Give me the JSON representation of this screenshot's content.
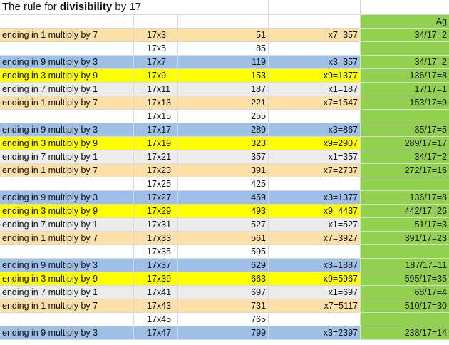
{
  "title": {
    "prefix": "The rule for ",
    "bold": "divisibility",
    "suffix": " by 17"
  },
  "header": {
    "ag_label": "Ag"
  },
  "colors": {
    "orange": "#fde0a8",
    "blue": "#9fc0e6",
    "yellow": "#ffff00",
    "grey": "#ececec",
    "green": "#92d050"
  },
  "rows": [
    {
      "rule": "ending in 1 multiply by 7",
      "expr": "17x3",
      "value": "51",
      "mult": "x7=357",
      "ag": "34/17=2",
      "color": "orange"
    },
    {
      "rule": "",
      "expr": "17x5",
      "value": "85",
      "mult": "",
      "ag": "",
      "color": "white"
    },
    {
      "rule": "ending in 9 multiply by 3",
      "expr": "17x7",
      "value": "119",
      "mult": "x3=357",
      "ag": "34/17=2",
      "color": "blue"
    },
    {
      "rule": "ending in 3 multiply by 9",
      "expr": "17x9",
      "value": "153",
      "mult": "x9=1377",
      "ag": "136/17=8",
      "color": "yellow"
    },
    {
      "rule": "ending in 7 multiply by 1",
      "expr": "17x11",
      "value": "187",
      "mult": "x1=187",
      "ag": "17/17=1",
      "color": "grey"
    },
    {
      "rule": "ending in 1 multiply by 7",
      "expr": "17x13",
      "value": "221",
      "mult": "x7=1547",
      "ag": "153/17=9",
      "color": "orange"
    },
    {
      "rule": "",
      "expr": "17x15",
      "value": "255",
      "mult": "",
      "ag": "",
      "color": "white"
    },
    {
      "rule": "ending in 9 multiply by 3",
      "expr": "17x17",
      "value": "289",
      "mult": "x3=867",
      "ag": "85/17=5",
      "color": "blue"
    },
    {
      "rule": "ending in 3 multiply by 9",
      "expr": "17x19",
      "value": "323",
      "mult": "x9=2907",
      "ag": "289/17=17",
      "color": "yellow"
    },
    {
      "rule": "ending in 7 multiply by 1",
      "expr": "17x21",
      "value": "357",
      "mult": "x1=357",
      "ag": "34/17=2",
      "color": "grey"
    },
    {
      "rule": "ending in 1 multiply by 7",
      "expr": "17x23",
      "value": "391",
      "mult": "x7=2737",
      "ag": "272/17=16",
      "color": "orange"
    },
    {
      "rule": "",
      "expr": "17x25",
      "value": "425",
      "mult": "",
      "ag": "",
      "color": "white"
    },
    {
      "rule": "ending in 9 multiply by 3",
      "expr": "17x27",
      "value": "459",
      "mult": "x3=1377",
      "ag": "136/17=8",
      "color": "blue"
    },
    {
      "rule": "ending in 3 multiply by 9",
      "expr": "17x29",
      "value": "493",
      "mult": "x9=4437",
      "ag": "442/17=26",
      "color": "yellow"
    },
    {
      "rule": "ending in 7 multiply by 1",
      "expr": "17x31",
      "value": "527",
      "mult": "x1=527",
      "ag": "51/17=3",
      "color": "grey"
    },
    {
      "rule": "ending in 1 multiply by 7",
      "expr": "17x33",
      "value": "561",
      "mult": "x7=3927",
      "ag": "391/17=23",
      "color": "orange"
    },
    {
      "rule": "",
      "expr": "17x35",
      "value": "595",
      "mult": "",
      "ag": "",
      "color": "white"
    },
    {
      "rule": "ending in 9 multiply by 3",
      "expr": "17x37",
      "value": "629",
      "mult": "x3=1887",
      "ag": "187/17=11",
      "color": "blue"
    },
    {
      "rule": "ending in 3 multiply by 9",
      "expr": "17x39",
      "value": "663",
      "mult": "x9=5967",
      "ag": "595/17=35",
      "color": "yellow"
    },
    {
      "rule": "ending in 7 multiply by 1",
      "expr": "17x41",
      "value": "697",
      "mult": "x1=697",
      "ag": "68/17=4",
      "color": "grey"
    },
    {
      "rule": "ending in 1 multiply by 7",
      "expr": "17x43",
      "value": "731",
      "mult": "x7=5117",
      "ag": "510/17=30",
      "color": "orange"
    },
    {
      "rule": "",
      "expr": "17x45",
      "value": "765",
      "mult": "",
      "ag": "",
      "color": "white"
    },
    {
      "rule": "ending in 9 multiply by 3",
      "expr": "17x47",
      "value": "799",
      "mult": "x3=2397",
      "ag": "238/17=14",
      "color": "blue"
    }
  ]
}
